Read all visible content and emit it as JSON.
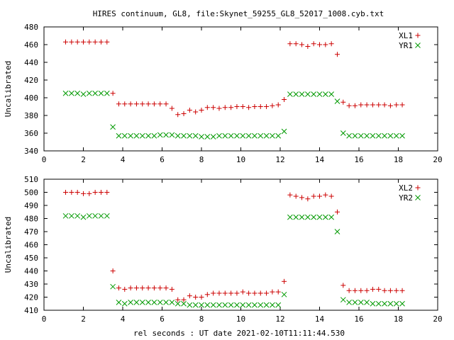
{
  "window": {
    "title": "HIRES continuum, GL8, file:Skynet_59255_GL8_52017_1008.cyb.txt"
  },
  "chart_data": [
    {
      "type": "scatter",
      "ylabel": "Uncalibrated",
      "xlabel": "",
      "xlim": [
        0,
        20
      ],
      "ylim": [
        340,
        480
      ],
      "xticks": [
        "0",
        "2",
        "4",
        "6",
        "8",
        "10",
        "12",
        "14",
        "16",
        "18",
        "20"
      ],
      "yticks": [
        "340",
        "360",
        "380",
        "400",
        "420",
        "440",
        "460",
        "480"
      ],
      "legend_position": "top-right",
      "grid": false,
      "series": [
        {
          "name": "XL1",
          "marker": "plus",
          "color": "#cc0000",
          "x": [
            1.1,
            1.4,
            1.7,
            2.0,
            2.3,
            2.6,
            2.9,
            3.2,
            3.5,
            3.8,
            4.1,
            4.4,
            4.7,
            5.0,
            5.3,
            5.6,
            5.9,
            6.2,
            6.5,
            6.8,
            7.1,
            7.4,
            7.7,
            8.0,
            8.3,
            8.6,
            8.9,
            9.2,
            9.5,
            9.8,
            10.1,
            10.4,
            10.7,
            11.0,
            11.3,
            11.6,
            11.9,
            12.2,
            12.5,
            12.8,
            13.1,
            13.4,
            13.7,
            14.0,
            14.3,
            14.6,
            14.9,
            15.2,
            15.5,
            15.8,
            16.1,
            16.4,
            16.7,
            17.0,
            17.3,
            17.6,
            17.9,
            18.2
          ],
          "y": [
            463,
            463,
            463,
            463,
            463,
            463,
            463,
            463,
            405,
            393,
            393,
            393,
            393,
            393,
            393,
            393,
            393,
            393,
            388,
            381,
            382,
            386,
            384,
            386,
            389,
            389,
            388,
            389,
            389,
            390,
            390,
            389,
            390,
            390,
            390,
            391,
            392,
            398,
            461,
            461,
            460,
            458,
            461,
            460,
            460,
            461,
            449,
            395,
            391,
            391,
            392,
            392,
            392,
            392,
            392,
            391,
            392,
            392
          ]
        },
        {
          "name": "YR1",
          "marker": "cross",
          "color": "#009900",
          "x": [
            1.1,
            1.4,
            1.7,
            2.0,
            2.3,
            2.6,
            2.9,
            3.2,
            3.5,
            3.8,
            4.1,
            4.4,
            4.7,
            5.0,
            5.3,
            5.6,
            5.9,
            6.2,
            6.5,
            6.8,
            7.1,
            7.4,
            7.7,
            8.0,
            8.3,
            8.6,
            8.9,
            9.2,
            9.5,
            9.8,
            10.1,
            10.4,
            10.7,
            11.0,
            11.3,
            11.6,
            11.9,
            12.2,
            12.5,
            12.8,
            13.1,
            13.4,
            13.7,
            14.0,
            14.3,
            14.6,
            14.9,
            15.2,
            15.5,
            15.8,
            16.1,
            16.4,
            16.7,
            17.0,
            17.3,
            17.6,
            17.9,
            18.2
          ],
          "y": [
            405,
            405,
            405,
            404,
            405,
            405,
            405,
            405,
            367,
            357,
            357,
            357,
            357,
            357,
            357,
            357,
            358,
            358,
            358,
            357,
            357,
            357,
            357,
            356,
            356,
            356,
            357,
            357,
            357,
            357,
            357,
            357,
            357,
            357,
            357,
            357,
            357,
            362,
            404,
            404,
            404,
            404,
            404,
            404,
            404,
            404,
            396,
            360,
            357,
            357,
            357,
            357,
            357,
            357,
            357,
            357,
            357,
            357
          ]
        }
      ]
    },
    {
      "type": "scatter",
      "ylabel": "Uncalibrated",
      "xlabel": "rel seconds : UT date 2021-02-10T11:11:44.530",
      "xlim": [
        0,
        20
      ],
      "ylim": [
        410,
        510
      ],
      "xticks": [
        "0",
        "2",
        "4",
        "6",
        "8",
        "10",
        "12",
        "14",
        "16",
        "18",
        "20"
      ],
      "yticks": [
        "410",
        "420",
        "430",
        "440",
        "450",
        "460",
        "470",
        "480",
        "490",
        "500",
        "510"
      ],
      "legend_position": "top-right",
      "grid": false,
      "series": [
        {
          "name": "XL2",
          "marker": "plus",
          "color": "#cc0000",
          "x": [
            1.1,
            1.4,
            1.7,
            2.0,
            2.3,
            2.6,
            2.9,
            3.2,
            3.5,
            3.8,
            4.1,
            4.4,
            4.7,
            5.0,
            5.3,
            5.6,
            5.9,
            6.2,
            6.5,
            6.8,
            7.1,
            7.4,
            7.7,
            8.0,
            8.3,
            8.6,
            8.9,
            9.2,
            9.5,
            9.8,
            10.1,
            10.4,
            10.7,
            11.0,
            11.3,
            11.6,
            11.9,
            12.2,
            12.5,
            12.8,
            13.1,
            13.4,
            13.7,
            14.0,
            14.3,
            14.6,
            14.9,
            15.2,
            15.5,
            15.8,
            16.1,
            16.4,
            16.7,
            17.0,
            17.3,
            17.6,
            17.9,
            18.2
          ],
          "y": [
            500,
            500,
            500,
            499,
            499,
            500,
            500,
            500,
            440,
            427,
            426,
            427,
            427,
            427,
            427,
            427,
            427,
            427,
            426,
            418,
            418,
            421,
            420,
            420,
            422,
            423,
            423,
            423,
            423,
            423,
            424,
            423,
            423,
            423,
            423,
            424,
            424,
            432,
            498,
            497,
            496,
            495,
            497,
            497,
            498,
            497,
            485,
            429,
            425,
            425,
            425,
            425,
            426,
            426,
            425,
            425,
            425,
            425
          ]
        },
        {
          "name": "YR2",
          "marker": "cross",
          "color": "#009900",
          "x": [
            1.1,
            1.4,
            1.7,
            2.0,
            2.3,
            2.6,
            2.9,
            3.2,
            3.5,
            3.8,
            4.1,
            4.4,
            4.7,
            5.0,
            5.3,
            5.6,
            5.9,
            6.2,
            6.5,
            6.8,
            7.1,
            7.4,
            7.7,
            8.0,
            8.3,
            8.6,
            8.9,
            9.2,
            9.5,
            9.8,
            10.1,
            10.4,
            10.7,
            11.0,
            11.3,
            11.6,
            11.9,
            12.2,
            12.5,
            12.8,
            13.1,
            13.4,
            13.7,
            14.0,
            14.3,
            14.6,
            14.9,
            15.2,
            15.5,
            15.8,
            16.1,
            16.4,
            16.7,
            17.0,
            17.3,
            17.6,
            17.9,
            18.2
          ],
          "y": [
            482,
            482,
            482,
            481,
            482,
            482,
            482,
            482,
            428,
            416,
            415,
            416,
            416,
            416,
            416,
            416,
            416,
            416,
            416,
            415,
            415,
            414,
            414,
            414,
            414,
            414,
            414,
            414,
            414,
            414,
            414,
            414,
            414,
            414,
            414,
            414,
            414,
            422,
            481,
            481,
            481,
            481,
            481,
            481,
            481,
            481,
            470,
            418,
            416,
            416,
            416,
            416,
            415,
            415,
            415,
            415,
            415,
            415
          ]
        }
      ]
    }
  ]
}
